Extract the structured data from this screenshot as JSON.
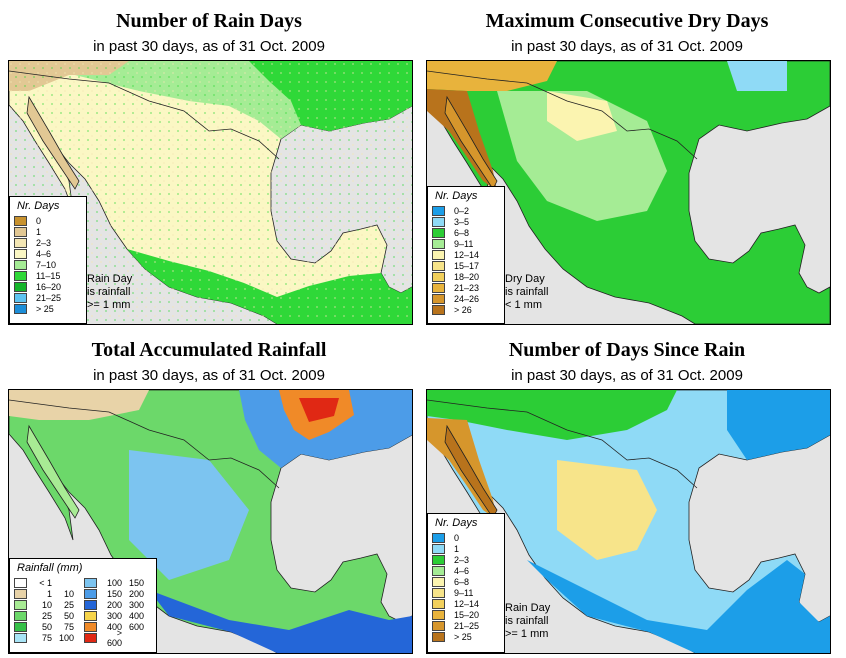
{
  "panels": [
    {
      "title": "Number of Rain Days",
      "subtitle": "in past 30 days, as of  31 Oct. 2009",
      "legend_title": "Nr. Days",
      "legend": [
        {
          "label": "0",
          "color": "#c8922e"
        },
        {
          "label": "1",
          "color": "#e2c894"
        },
        {
          "label": "2–3",
          "color": "#f3e6b4"
        },
        {
          "label": "4–6",
          "color": "#fbf7c4"
        },
        {
          "label": "7–10",
          "color": "#a5ec95"
        },
        {
          "label": "11–15",
          "color": "#2fd838"
        },
        {
          "label": "16–20",
          "color": "#15b52a"
        },
        {
          "label": "21–25",
          "color": "#5ec3f0"
        },
        {
          "label": "> 25",
          "color": "#1c8ed8"
        }
      ],
      "note": [
        "Rain Day",
        "is rainfall",
        ">= 1 mm"
      ]
    },
    {
      "title": "Maximum Consecutive Dry Days",
      "subtitle": "in past 30 days, as of  31 Oct. 2009",
      "legend_title": "Nr. Days",
      "legend": [
        {
          "label": "0–2",
          "color": "#1c9ee8"
        },
        {
          "label": "3–5",
          "color": "#8fdaf6"
        },
        {
          "label": "6–8",
          "color": "#2ccd36"
        },
        {
          "label": "9–11",
          "color": "#a5ec95"
        },
        {
          "label": "12–14",
          "color": "#fbf4b0"
        },
        {
          "label": "15–17",
          "color": "#f7e48a"
        },
        {
          "label": "18–20",
          "color": "#f2d05c"
        },
        {
          "label": "21–23",
          "color": "#e8b33c"
        },
        {
          "label": "24–26",
          "color": "#d6962c"
        },
        {
          "label": "> 26",
          "color": "#b8731c"
        }
      ],
      "note": [
        "Dry Day",
        "is rainfall",
        "< 1 mm"
      ]
    },
    {
      "title": "Total Accumulated Rainfall",
      "subtitle": "in past 30 days, as of  31 Oct. 2009",
      "legend_title": "Rainfall (mm)",
      "legend_left": [
        {
          "lo": "< 1",
          "hi": "",
          "color": "#ffffff"
        },
        {
          "lo": "1",
          "hi": "10",
          "color": "#e8d3a8"
        },
        {
          "lo": "10",
          "hi": "25",
          "color": "#a8eb94"
        },
        {
          "lo": "25",
          "hi": "50",
          "color": "#6cd86a"
        },
        {
          "lo": "50",
          "hi": "75",
          "color": "#36c048"
        },
        {
          "lo": "75",
          "hi": "100",
          "color": "#a8e4f6"
        }
      ],
      "legend_right": [
        {
          "lo": "100",
          "hi": "150",
          "color": "#7cc4f0"
        },
        {
          "lo": "150",
          "hi": "200",
          "color": "#4c9ce8"
        },
        {
          "lo": "200",
          "hi": "300",
          "color": "#2466d8"
        },
        {
          "lo": "300",
          "hi": "400",
          "color": "#f6d44a"
        },
        {
          "lo": "400",
          "hi": "600",
          "color": "#f08a28"
        },
        {
          "lo": "> 600",
          "hi": "",
          "color": "#e02814"
        }
      ]
    },
    {
      "title": "Number of Days Since Rain",
      "subtitle": "in past 30 days, as of  31 Oct. 2009",
      "legend_title": "Nr. Days",
      "legend": [
        {
          "label": "0",
          "color": "#1c9ee8"
        },
        {
          "label": "1",
          "color": "#8fdaf6"
        },
        {
          "label": "2–3",
          "color": "#2ccd36"
        },
        {
          "label": "4–6",
          "color": "#a5ec95"
        },
        {
          "label": "6–8",
          "color": "#fbf4b0"
        },
        {
          "label": "9–11",
          "color": "#f7e48a"
        },
        {
          "label": "12–14",
          "color": "#f2d05c"
        },
        {
          "label": "15–20",
          "color": "#e8b33c"
        },
        {
          "label": "21–25",
          "color": "#d6962c"
        },
        {
          "label": "> 25",
          "color": "#b8731c"
        }
      ],
      "note": [
        "Rain Day",
        "is rainfall",
        ">= 1 mm"
      ]
    }
  ]
}
